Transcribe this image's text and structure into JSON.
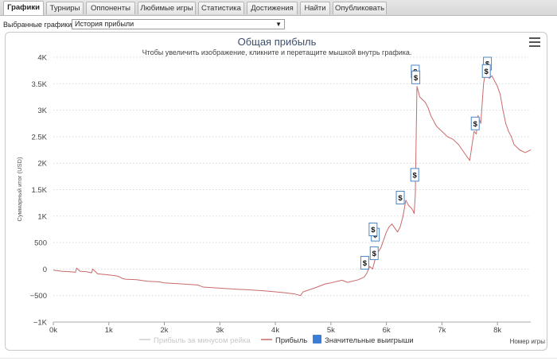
{
  "tabs": [
    {
      "label": "Графики",
      "active": true
    },
    {
      "label": "Турниры"
    },
    {
      "label": "Оппоненты"
    },
    {
      "label": "Любимые игры"
    },
    {
      "label": "Статистика"
    },
    {
      "label": "Достижения"
    },
    {
      "label": "Найти"
    },
    {
      "label": "Опубликовать"
    }
  ],
  "selector": {
    "label": "Выбранные графики:",
    "value": "История прибыли"
  },
  "colors": {
    "profit_line": "#c96a6a",
    "minus_rake_line": "#cccccc",
    "marker_border": "#4a86c5",
    "legend_big_win": "#3a7fd5",
    "grid": "#d9d9d9"
  },
  "chart_data": {
    "type": "line",
    "title": "Общая прибыль",
    "subtitle": "Чтобы увеличить изображение, кликните и перетащите мышкой внутрь графика.",
    "xlabel": "Номер игры",
    "ylabel": "Суммарный итог (USD)",
    "xlim": [
      0,
      8600
    ],
    "ylim": [
      -1000,
      4000
    ],
    "grid": true,
    "legend_position": "bottom-center",
    "x_ticks": [
      "0k",
      "1k",
      "2k",
      "3k",
      "4k",
      "5k",
      "6k",
      "7k",
      "8k"
    ],
    "y_ticks": [
      "−1K",
      "−500",
      "0",
      "500",
      "1K",
      "1.5K",
      "2K",
      "2.5K",
      "3K",
      "3.5K",
      "4K"
    ],
    "legend": [
      "Прибыль за минусом рейка",
      "Прибыль",
      "Значительные выигрыши"
    ],
    "series": [
      {
        "name": "Прибыль",
        "x": [
          0,
          150,
          300,
          400,
          420,
          480,
          600,
          690,
          710,
          800,
          1000,
          1150,
          1200,
          1250,
          1300,
          1500,
          1700,
          1900,
          2000,
          2300,
          2600,
          2700,
          3000,
          3300,
          3500,
          3800,
          4000,
          4200,
          4350,
          4450,
          4500,
          4700,
          4900,
          5000,
          5200,
          5300,
          5500,
          5600,
          5650,
          5700,
          5750,
          5800,
          5850,
          5900,
          5950,
          6000,
          6050,
          6100,
          6200,
          6250,
          6300,
          6350,
          6400,
          6450,
          6480,
          6500,
          6520,
          6550,
          6600,
          6700,
          6750,
          6800,
          6900,
          7000,
          7100,
          7200,
          7300,
          7400,
          7500,
          7580,
          7620,
          7650,
          7700,
          7750,
          7780,
          7800,
          7850,
          7900,
          8000,
          8050,
          8100,
          8150,
          8200,
          8250,
          8300,
          8400,
          8500,
          8600
        ],
        "y": [
          -20,
          -40,
          -50,
          -60,
          20,
          -40,
          -50,
          -70,
          0,
          -90,
          -110,
          -130,
          -150,
          -180,
          -190,
          -200,
          -230,
          -240,
          -260,
          -280,
          -300,
          -340,
          -360,
          -380,
          -390,
          -410,
          -430,
          -450,
          -470,
          -500,
          -430,
          -360,
          -280,
          -260,
          -210,
          -250,
          -200,
          -150,
          -70,
          50,
          0,
          200,
          320,
          400,
          550,
          700,
          800,
          850,
          700,
          800,
          1000,
          1300,
          1200,
          1150,
          1100,
          1050,
          1400,
          3450,
          3250,
          3150,
          3050,
          2900,
          2700,
          2600,
          2500,
          2450,
          2350,
          2200,
          2050,
          2600,
          2550,
          2900,
          2750,
          3500,
          3700,
          3850,
          3600,
          3650,
          3450,
          3300,
          3000,
          2750,
          2600,
          2500,
          2350,
          2250,
          2200,
          2250
        ]
      }
    ],
    "flags": [
      {
        "x": 5610,
        "y": 120,
        "label": "$"
      },
      {
        "x": 5780,
        "y": 300,
        "label": "$"
      },
      {
        "x": 5800,
        "y": 650,
        "label": "$"
      },
      {
        "x": 5760,
        "y": 750,
        "label": "$"
      },
      {
        "x": 6250,
        "y": 1350,
        "label": "$"
      },
      {
        "x": 6510,
        "y": 1780,
        "label": "$"
      },
      {
        "x": 6520,
        "y": 3730,
        "label": "$"
      },
      {
        "x": 6530,
        "y": 3620,
        "label": "$"
      },
      {
        "x": 7600,
        "y": 2750,
        "label": "$"
      },
      {
        "x": 7820,
        "y": 3880,
        "label": "$"
      },
      {
        "x": 7800,
        "y": 3740,
        "label": "$"
      }
    ]
  }
}
